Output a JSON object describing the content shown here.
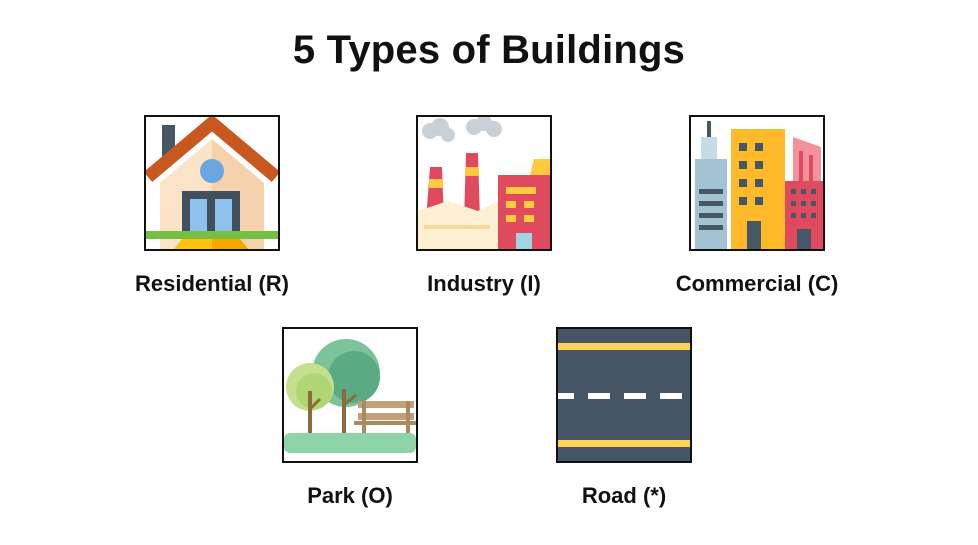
{
  "title": "5 Types of Buildings",
  "buildings": [
    {
      "label": "Residential (R)",
      "icon": "house-icon"
    },
    {
      "label": "Industry (I)",
      "icon": "factory-icon"
    },
    {
      "label": "Commercial (C)",
      "icon": "office-buildings-icon"
    },
    {
      "label": "Park (O)",
      "icon": "park-icon"
    },
    {
      "label": "Road (*)",
      "icon": "road-icon"
    }
  ]
}
